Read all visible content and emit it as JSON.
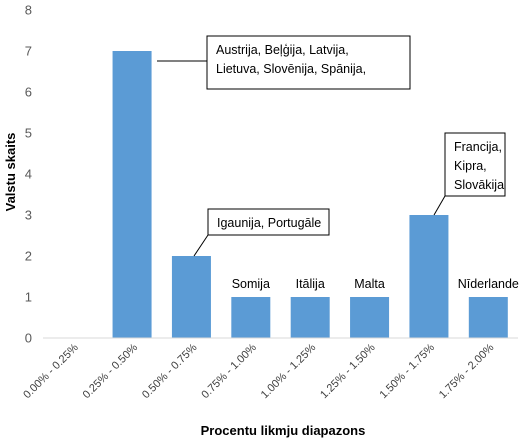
{
  "chart_data": {
    "type": "bar",
    "categories": [
      "0.00% - 0.25%",
      "0.25% - 0.50%",
      "0.50% - 0.75%",
      "0.75% - 1.00%",
      "1.00% - 1.25%",
      "1.25% - 1.50%",
      "1.50% - 1.75%",
      "1.75% - 2.00%"
    ],
    "values": [
      0,
      7,
      2,
      1,
      1,
      1,
      3,
      1
    ],
    "xlabel": "Procentu likmju diapazons",
    "ylabel": "Valstu skaits",
    "ylim": [
      0,
      8
    ],
    "yticks": [
      "0",
      "1",
      "2",
      "3",
      "4",
      "5",
      "6",
      "7",
      "8"
    ],
    "grid": false,
    "bar_color": "#5B9BD5",
    "annotations": [
      {
        "category_index": 1,
        "lines": [
          "Austrija, Beļģija, Latvija,",
          "Lietuva, Slovēnija, Spānija,"
        ],
        "boxed": true
      },
      {
        "category_index": 2,
        "lines": [
          "Igaunija, Portugāle"
        ],
        "boxed": true
      },
      {
        "category_index": 3,
        "lines": [
          "Somija"
        ],
        "boxed": false
      },
      {
        "category_index": 4,
        "lines": [
          "Itālija"
        ],
        "boxed": false
      },
      {
        "category_index": 5,
        "lines": [
          "Malta"
        ],
        "boxed": false
      },
      {
        "category_index": 6,
        "lines": [
          "Francija,",
          "Kipra,",
          "Slovākija"
        ],
        "boxed": true
      },
      {
        "category_index": 7,
        "lines": [
          "Nīderlande"
        ],
        "boxed": false
      }
    ]
  }
}
